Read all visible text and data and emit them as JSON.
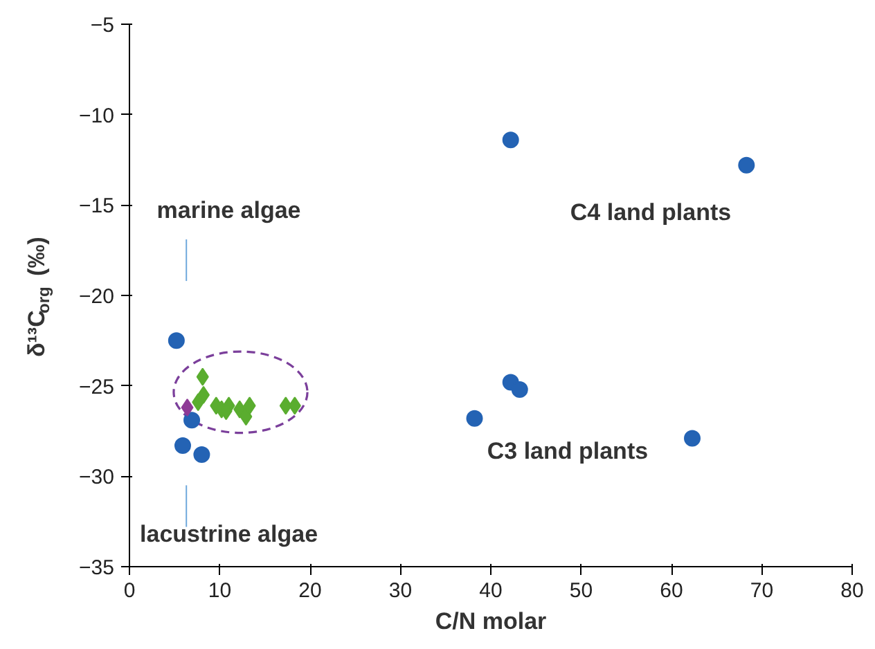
{
  "chart_data": {
    "type": "scatter",
    "xlabel": "C/N molar",
    "ylabel": "δ¹³C$_{org}$ (‰)",
    "xlim": [
      0,
      80
    ],
    "ylim": [
      -35,
      -5
    ],
    "xticks": [
      0,
      10,
      20,
      30,
      40,
      50,
      60,
      70,
      80
    ],
    "yticks": [
      -35,
      -30,
      -25,
      -20,
      -15,
      -10,
      -5
    ],
    "grid": false,
    "series": [
      {
        "color": "#2463b4",
        "marker": "circle",
        "x": [
          5.2,
          6.9,
          5.9,
          8.0,
          42.2,
          68.3,
          42.2,
          43.2,
          38.2,
          62.3
        ],
        "values": [
          -22.5,
          -26.9,
          -28.3,
          -28.8,
          -11.4,
          -12.8,
          -24.8,
          -25.2,
          -26.8,
          -27.9
        ]
      },
      {
        "color": "#5aad2f",
        "marker": "diamond",
        "x": [
          8.1,
          8.2,
          7.6,
          9.6,
          10.2,
          11.0,
          10.7,
          12.2,
          12.9,
          13.3,
          17.3,
          18.3
        ],
        "values": [
          -24.5,
          -25.5,
          -25.9,
          -26.1,
          -26.3,
          -26.1,
          -26.4,
          -26.3,
          -26.7,
          -26.1,
          -26.1,
          -26.1
        ]
      },
      {
        "color": "#8e3a96",
        "marker": "diamond",
        "x": [
          6.4
        ],
        "values": [
          -26.2
        ]
      }
    ],
    "annotations": [
      "C4 land plants",
      "C3 land plants",
      "marine algae",
      "lacustrine algae"
    ]
  }
}
